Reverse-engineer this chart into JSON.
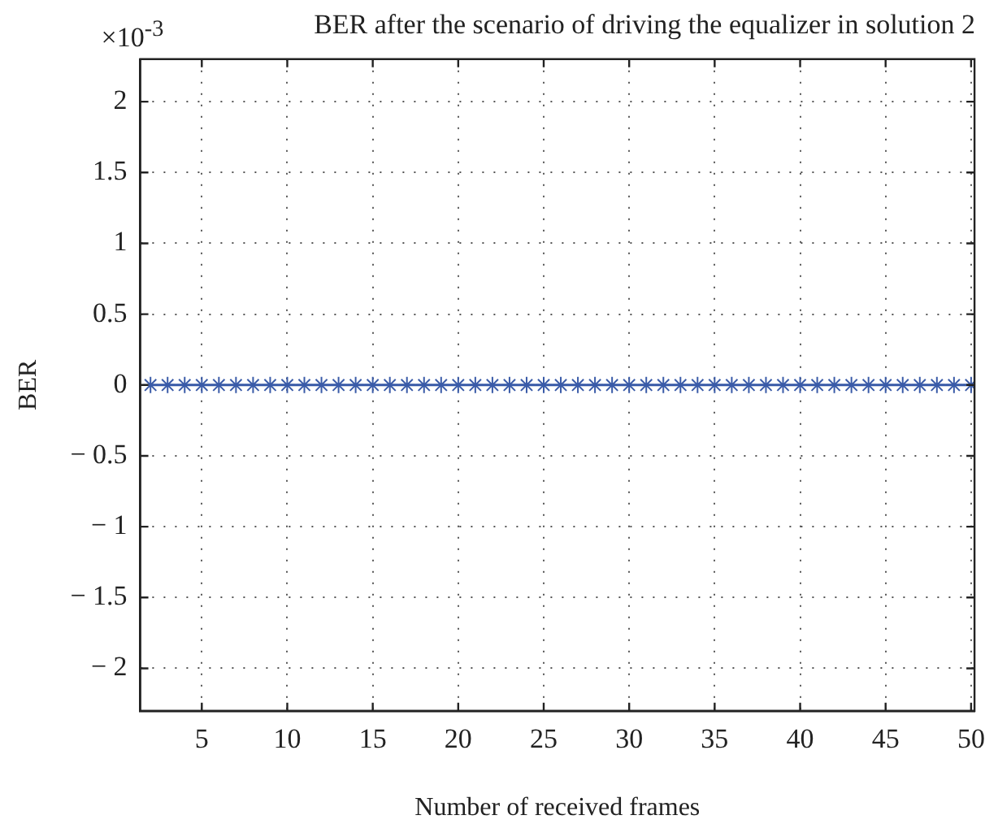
{
  "chart_data": {
    "type": "line",
    "title": "BER after the scenario of driving the equalizer in solution 2",
    "xlabel": "Number of received frames",
    "ylabel": "BER",
    "annotations": [
      "×10$^{-3}$"
    ],
    "x": [
      2,
      3,
      4,
      5,
      6,
      7,
      8,
      9,
      10,
      11,
      12,
      13,
      14,
      15,
      16,
      17,
      18,
      19,
      20,
      21,
      22,
      23,
      24,
      25,
      26,
      27,
      28,
      29,
      30,
      31,
      32,
      33,
      34,
      35,
      36,
      37,
      38,
      39,
      40,
      41,
      42,
      43,
      44,
      45,
      46,
      47,
      48,
      49,
      50
    ],
    "series": [
      {
        "color": "#3a5ba8",
        "values": [
          0,
          0,
          0,
          0,
          0,
          0,
          0,
          0,
          0,
          0,
          0,
          0,
          0,
          0,
          0,
          0,
          0,
          0,
          0,
          0,
          0,
          0,
          0,
          0,
          0,
          0,
          0,
          0,
          0,
          0,
          0,
          0,
          0,
          0,
          0,
          0,
          0,
          0,
          0,
          0,
          0,
          0,
          0,
          0,
          0,
          0,
          0,
          0,
          0
        ]
      }
    ],
    "xlim": [
      1.4,
      50.2
    ],
    "xticks": [
      5,
      10,
      15,
      20,
      25,
      30,
      35,
      40,
      45,
      50
    ],
    "ylim": [
      -2.3,
      2.3
    ],
    "yticks": [
      {
        "value": -2,
        "label": "− 2"
      },
      {
        "value": -1.5,
        "label": "− 1.5"
      },
      {
        "value": -1,
        "label": "− 1"
      },
      {
        "value": -0.5,
        "label": "− 0.5"
      },
      0,
      0.5,
      1,
      1.5,
      2
    ],
    "grid": true,
    "legend": false,
    "marker": "cross",
    "line_style": "solid"
  }
}
